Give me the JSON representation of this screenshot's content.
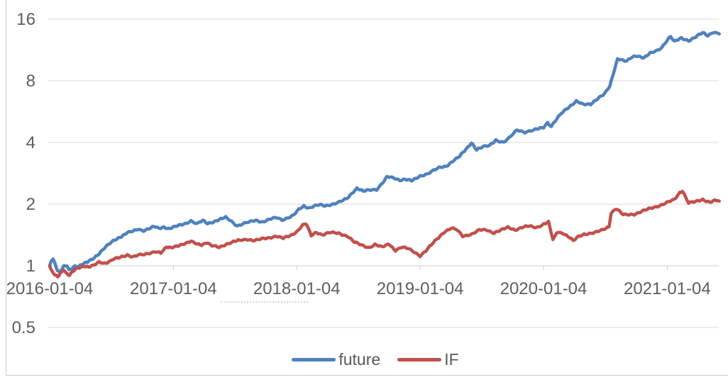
{
  "chart_data": {
    "type": "line",
    "y_scale": "log2",
    "ylim": [
      0.5,
      16
    ],
    "grid": true,
    "legend_position": "bottom",
    "axis_label_color": "#5e5e5e",
    "gridline_color": "#d9d9d9",
    "axis_line_color": "#cccccc",
    "y_ticks": [
      {
        "label": "16",
        "value": 16
      },
      {
        "label": "8",
        "value": 8
      },
      {
        "label": "4",
        "value": 4
      },
      {
        "label": "2",
        "value": 2
      },
      {
        "label": "1",
        "value": 1
      },
      {
        "label": "0.5",
        "value": 0.5
      }
    ],
    "x_ticks": [
      "2016-01-04",
      "2017-01-04",
      "2018-01-04",
      "2019-01-04",
      "2020-01-04",
      "2021-01-04"
    ],
    "x_range": [
      "2016-01-04",
      "2021-06-10"
    ],
    "x_axis_crosses_at": 1,
    "series": [
      {
        "name": "future",
        "color": "#4f81bd",
        "points": [
          [
            "2016-01-04",
            1.0
          ],
          [
            "2016-01-08",
            1.06
          ],
          [
            "2016-01-14",
            1.08
          ],
          [
            "2016-01-20",
            1.03
          ],
          [
            "2016-01-27",
            0.95
          ],
          [
            "2016-02-03",
            0.93
          ],
          [
            "2016-02-15",
            0.99
          ],
          [
            "2016-02-24",
            1.0
          ],
          [
            "2016-03-01",
            0.95
          ],
          [
            "2016-03-09",
            0.97
          ],
          [
            "2016-03-18",
            1.0
          ],
          [
            "2016-03-30",
            1.0
          ],
          [
            "2016-04-12",
            1.02
          ],
          [
            "2016-04-25",
            1.04
          ],
          [
            "2016-05-10",
            1.08
          ],
          [
            "2016-05-29",
            1.15
          ],
          [
            "2016-06-14",
            1.22
          ],
          [
            "2016-07-10",
            1.32
          ],
          [
            "2016-07-25",
            1.37
          ],
          [
            "2016-08-08",
            1.41
          ],
          [
            "2016-08-21",
            1.45
          ],
          [
            "2016-09-06",
            1.47
          ],
          [
            "2016-09-20",
            1.51
          ],
          [
            "2016-10-08",
            1.49
          ],
          [
            "2016-10-24",
            1.52
          ],
          [
            "2016-11-08",
            1.55
          ],
          [
            "2016-11-22",
            1.52
          ],
          [
            "2016-12-07",
            1.55
          ],
          [
            "2016-12-21",
            1.52
          ],
          [
            "2017-01-04",
            1.54
          ],
          [
            "2017-01-20",
            1.57
          ],
          [
            "2017-02-08",
            1.61
          ],
          [
            "2017-02-25",
            1.66
          ],
          [
            "2017-03-15",
            1.6
          ],
          [
            "2017-04-01",
            1.66
          ],
          [
            "2017-04-15",
            1.61
          ],
          [
            "2017-05-01",
            1.64
          ],
          [
            "2017-05-20",
            1.68
          ],
          [
            "2017-06-08",
            1.72
          ],
          [
            "2017-06-25",
            1.65
          ],
          [
            "2017-07-12",
            1.57
          ],
          [
            "2017-07-28",
            1.6
          ],
          [
            "2017-08-15",
            1.63
          ],
          [
            "2017-09-05",
            1.67
          ],
          [
            "2017-09-25",
            1.64
          ],
          [
            "2017-10-15",
            1.68
          ],
          [
            "2017-11-05",
            1.72
          ],
          [
            "2017-11-22",
            1.68
          ],
          [
            "2017-12-10",
            1.72
          ],
          [
            "2017-12-25",
            1.76
          ],
          [
            "2018-01-10",
            1.88
          ],
          [
            "2018-01-25",
            1.96
          ],
          [
            "2018-02-09",
            1.92
          ],
          [
            "2018-02-25",
            1.96
          ],
          [
            "2018-03-12",
            1.98
          ],
          [
            "2018-03-28",
            1.96
          ],
          [
            "2018-04-12",
            1.99
          ],
          [
            "2018-04-28",
            2.02
          ],
          [
            "2018-05-15",
            2.06
          ],
          [
            "2018-06-01",
            2.12
          ],
          [
            "2018-06-20",
            2.3
          ],
          [
            "2018-07-01",
            2.4
          ],
          [
            "2018-07-20",
            2.31
          ],
          [
            "2018-08-10",
            2.34
          ],
          [
            "2018-08-28",
            2.36
          ],
          [
            "2018-09-15",
            2.55
          ],
          [
            "2018-09-28",
            2.72
          ],
          [
            "2018-10-15",
            2.68
          ],
          [
            "2018-11-05",
            2.62
          ],
          [
            "2018-11-20",
            2.66
          ],
          [
            "2018-12-10",
            2.6
          ],
          [
            "2018-12-20",
            2.64
          ],
          [
            "2019-01-04",
            2.74
          ],
          [
            "2019-01-25",
            2.82
          ],
          [
            "2019-02-12",
            2.92
          ],
          [
            "2019-03-01",
            3.0
          ],
          [
            "2019-03-22",
            3.06
          ],
          [
            "2019-04-10",
            3.25
          ],
          [
            "2019-05-01",
            3.42
          ],
          [
            "2019-05-20",
            3.7
          ],
          [
            "2019-06-05",
            4.0
          ],
          [
            "2019-06-20",
            3.7
          ],
          [
            "2019-07-10",
            3.8
          ],
          [
            "2019-07-28",
            3.86
          ],
          [
            "2019-08-16",
            4.12
          ],
          [
            "2019-09-08",
            4.0
          ],
          [
            "2019-09-25",
            4.2
          ],
          [
            "2019-10-18",
            4.62
          ],
          [
            "2019-11-10",
            4.5
          ],
          [
            "2019-12-05",
            4.58
          ],
          [
            "2019-12-20",
            4.66
          ],
          [
            "2020-01-04",
            4.75
          ],
          [
            "2020-01-16",
            5.02
          ],
          [
            "2020-01-27",
            4.8
          ],
          [
            "2020-02-12",
            5.2
          ],
          [
            "2020-03-01",
            5.62
          ],
          [
            "2020-03-20",
            5.98
          ],
          [
            "2020-04-10",
            6.38
          ],
          [
            "2020-05-01",
            6.1
          ],
          [
            "2020-05-22",
            6.15
          ],
          [
            "2020-06-12",
            6.58
          ],
          [
            "2020-07-03",
            6.9
          ],
          [
            "2020-07-18",
            7.5
          ],
          [
            "2020-07-28",
            8.6
          ],
          [
            "2020-08-10",
            10.3
          ],
          [
            "2020-08-25",
            10.1
          ],
          [
            "2020-09-06",
            9.95
          ],
          [
            "2020-09-22",
            10.4
          ],
          [
            "2020-10-08",
            10.6
          ],
          [
            "2020-10-27",
            10.4
          ],
          [
            "2020-11-15",
            10.9
          ],
          [
            "2020-11-30",
            11.1
          ],
          [
            "2020-12-18",
            11.6
          ],
          [
            "2021-01-04",
            12.7
          ],
          [
            "2021-01-14",
            13.2
          ],
          [
            "2021-01-25",
            12.4
          ],
          [
            "2021-02-15",
            12.9
          ],
          [
            "2021-03-08",
            12.6
          ],
          [
            "2021-03-29",
            13.1
          ],
          [
            "2021-04-19",
            13.7
          ],
          [
            "2021-05-04",
            13.3
          ],
          [
            "2021-05-21",
            13.9
          ],
          [
            "2021-06-07",
            13.55
          ]
        ]
      },
      {
        "name": "IF",
        "color": "#c0504d",
        "points": [
          [
            "2016-01-04",
            1.0
          ],
          [
            "2016-01-07",
            0.97
          ],
          [
            "2016-01-13",
            0.92
          ],
          [
            "2016-01-20",
            0.9
          ],
          [
            "2016-01-28",
            0.88
          ],
          [
            "2016-02-04",
            0.92
          ],
          [
            "2016-02-16",
            0.96
          ],
          [
            "2016-02-25",
            0.91
          ],
          [
            "2016-03-03",
            0.9
          ],
          [
            "2016-03-11",
            0.93
          ],
          [
            "2016-03-21",
            0.96
          ],
          [
            "2016-04-01",
            0.98
          ],
          [
            "2016-04-14",
            1.0
          ],
          [
            "2016-04-28",
            0.99
          ],
          [
            "2016-05-12",
            1.0
          ],
          [
            "2016-05-29",
            1.04
          ],
          [
            "2016-06-14",
            1.03
          ],
          [
            "2016-06-28",
            1.05
          ],
          [
            "2016-07-10",
            1.08
          ],
          [
            "2016-07-26",
            1.09
          ],
          [
            "2016-08-10",
            1.11
          ],
          [
            "2016-08-21",
            1.13
          ],
          [
            "2016-09-06",
            1.11
          ],
          [
            "2016-09-22",
            1.13
          ],
          [
            "2016-10-10",
            1.13
          ],
          [
            "2016-10-26",
            1.15
          ],
          [
            "2016-11-13",
            1.18
          ],
          [
            "2016-11-28",
            1.16
          ],
          [
            "2016-12-15",
            1.23
          ],
          [
            "2016-12-28",
            1.22
          ],
          [
            "2017-01-12",
            1.25
          ],
          [
            "2017-01-26",
            1.27
          ],
          [
            "2017-02-12",
            1.29
          ],
          [
            "2017-02-25",
            1.31
          ],
          [
            "2017-03-15",
            1.28
          ],
          [
            "2017-03-29",
            1.27
          ],
          [
            "2017-04-12",
            1.3
          ],
          [
            "2017-04-28",
            1.25
          ],
          [
            "2017-05-20",
            1.23
          ],
          [
            "2017-06-10",
            1.28
          ],
          [
            "2017-07-01",
            1.31
          ],
          [
            "2017-07-20",
            1.33
          ],
          [
            "2017-08-12",
            1.35
          ],
          [
            "2017-09-01",
            1.33
          ],
          [
            "2017-09-23",
            1.35
          ],
          [
            "2017-10-15",
            1.37
          ],
          [
            "2017-11-04",
            1.4
          ],
          [
            "2017-11-25",
            1.36
          ],
          [
            "2017-12-15",
            1.4
          ],
          [
            "2018-01-04",
            1.47
          ],
          [
            "2018-01-21",
            1.58
          ],
          [
            "2018-02-01",
            1.6
          ],
          [
            "2018-02-16",
            1.4
          ],
          [
            "2018-03-03",
            1.46
          ],
          [
            "2018-03-20",
            1.42
          ],
          [
            "2018-04-10",
            1.45
          ],
          [
            "2018-05-08",
            1.44
          ],
          [
            "2018-06-03",
            1.4
          ],
          [
            "2018-06-24",
            1.3
          ],
          [
            "2018-07-15",
            1.26
          ],
          [
            "2018-08-06",
            1.23
          ],
          [
            "2018-08-23",
            1.27
          ],
          [
            "2018-09-13",
            1.23
          ],
          [
            "2018-10-04",
            1.28
          ],
          [
            "2018-10-23",
            1.19
          ],
          [
            "2018-11-10",
            1.23
          ],
          [
            "2018-12-01",
            1.21
          ],
          [
            "2018-12-18",
            1.17
          ],
          [
            "2019-01-04",
            1.12
          ],
          [
            "2019-01-21",
            1.18
          ],
          [
            "2019-02-22",
            1.35
          ],
          [
            "2019-03-15",
            1.46
          ],
          [
            "2019-04-05",
            1.52
          ],
          [
            "2019-04-22",
            1.5
          ],
          [
            "2019-05-10",
            1.4
          ],
          [
            "2019-06-07",
            1.43
          ],
          [
            "2019-06-28",
            1.49
          ],
          [
            "2019-07-19",
            1.5
          ],
          [
            "2019-08-10",
            1.45
          ],
          [
            "2019-08-31",
            1.49
          ],
          [
            "2019-09-21",
            1.54
          ],
          [
            "2019-10-12",
            1.5
          ],
          [
            "2019-11-02",
            1.54
          ],
          [
            "2019-11-23",
            1.56
          ],
          [
            "2019-12-14",
            1.54
          ],
          [
            "2020-01-05",
            1.6
          ],
          [
            "2020-01-19",
            1.63
          ],
          [
            "2020-02-01",
            1.33
          ],
          [
            "2020-02-12",
            1.46
          ],
          [
            "2020-03-01",
            1.45
          ],
          [
            "2020-03-22",
            1.37
          ],
          [
            "2020-04-01",
            1.32
          ],
          [
            "2020-04-17",
            1.39
          ],
          [
            "2020-05-03",
            1.43
          ],
          [
            "2020-06-04",
            1.45
          ],
          [
            "2020-06-20",
            1.48
          ],
          [
            "2020-07-05",
            1.52
          ],
          [
            "2020-07-16",
            1.56
          ],
          [
            "2020-07-22",
            1.82
          ],
          [
            "2020-08-06",
            1.9
          ],
          [
            "2020-08-27",
            1.77
          ],
          [
            "2020-09-29",
            1.79
          ],
          [
            "2020-10-20",
            1.84
          ],
          [
            "2020-11-21",
            1.92
          ],
          [
            "2020-12-23",
            2.0
          ],
          [
            "2021-01-25",
            2.1
          ],
          [
            "2021-02-10",
            2.28
          ],
          [
            "2021-02-18",
            2.33
          ],
          [
            "2021-03-08",
            2.03
          ],
          [
            "2021-03-29",
            2.05
          ],
          [
            "2021-04-19",
            2.11
          ],
          [
            "2021-05-10",
            2.05
          ],
          [
            "2021-05-25",
            2.08
          ],
          [
            "2021-06-07",
            2.07
          ]
        ]
      }
    ]
  }
}
